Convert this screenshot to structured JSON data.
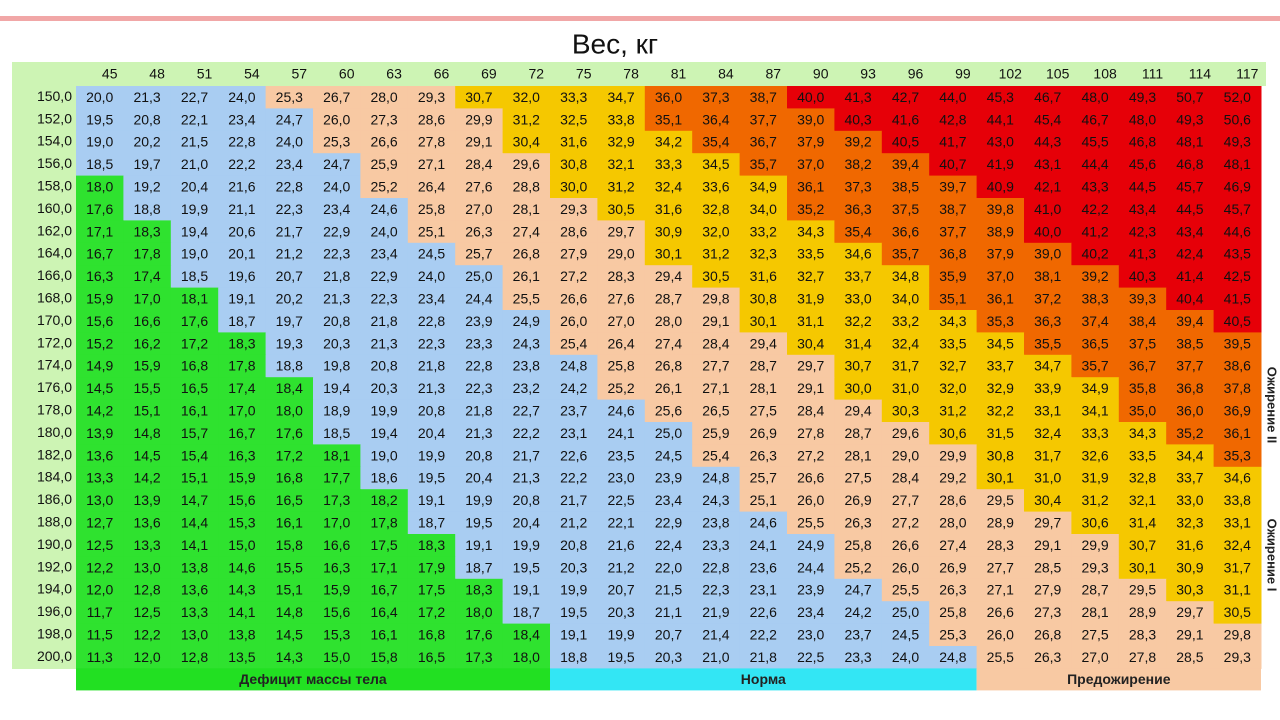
{
  "title": "Вес, кг",
  "weights": [
    45,
    48,
    51,
    54,
    57,
    60,
    63,
    66,
    69,
    72,
    75,
    78,
    81,
    84,
    87,
    90,
    93,
    96,
    99,
    102,
    105,
    108,
    111,
    114,
    117
  ],
  "zones": [
    {
      "color": "#2fe22f",
      "min": 0
    },
    {
      "color": "#a9cdf2",
      "min": 18.5
    },
    {
      "color": "#f8c9a3",
      "min": 25.1
    },
    {
      "color": "#f5c800",
      "min": 30
    },
    {
      "color": "#f06800",
      "min": 35
    },
    {
      "color": "#e60008",
      "min": 40
    }
  ],
  "rows": [
    {
      "height": "150,0",
      "values": [
        "20,0",
        "21,3",
        "22,7",
        "24,0",
        "25,3",
        "26,7",
        "28,0",
        "29,3",
        "30,7",
        "32,0",
        "33,3",
        "34,7",
        "36,0",
        "37,3",
        "38,7",
        "40,0",
        "41,3",
        "42,7",
        "44,0",
        "45,3",
        "46,7",
        "48,0",
        "49,3",
        "50,7",
        "52,0"
      ]
    },
    {
      "height": "152,0",
      "values": [
        "19,5",
        "20,8",
        "22,1",
        "23,4",
        "24,7",
        "26,0",
        "27,3",
        "28,6",
        "29,9",
        "31,2",
        "32,5",
        "33,8",
        "35,1",
        "36,4",
        "37,7",
        "39,0",
        "40,3",
        "41,6",
        "42,8",
        "44,1",
        "45,4",
        "46,7",
        "48,0",
        "49,3",
        "50,6"
      ]
    },
    {
      "height": "154,0",
      "values": [
        "19,0",
        "20,2",
        "21,5",
        "22,8",
        "24,0",
        "25,3",
        "26,6",
        "27,8",
        "29,1",
        "30,4",
        "31,6",
        "32,9",
        "34,2",
        "35,4",
        "36,7",
        "37,9",
        "39,2",
        "40,5",
        "41,7",
        "43,0",
        "44,3",
        "45,5",
        "46,8",
        "48,1",
        "49,3"
      ]
    },
    {
      "height": "156,0",
      "values": [
        "18,5",
        "19,7",
        "21,0",
        "22,2",
        "23,4",
        "24,7",
        "25,9",
        "27,1",
        "28,4",
        "29,6",
        "30,8",
        "32,1",
        "33,3",
        "34,5",
        "35,7",
        "37,0",
        "38,2",
        "39,4",
        "40,7",
        "41,9",
        "43,1",
        "44,4",
        "45,6",
        "46,8",
        "48,1"
      ]
    },
    {
      "height": "158,0",
      "values": [
        "18,0",
        "19,2",
        "20,4",
        "21,6",
        "22,8",
        "24,0",
        "25,2",
        "26,4",
        "27,6",
        "28,8",
        "30,0",
        "31,2",
        "32,4",
        "33,6",
        "34,9",
        "36,1",
        "37,3",
        "38,5",
        "39,7",
        "40,9",
        "42,1",
        "43,3",
        "44,5",
        "45,7",
        "46,9"
      ]
    },
    {
      "height": "160,0",
      "values": [
        "17,6",
        "18,8",
        "19,9",
        "21,1",
        "22,3",
        "23,4",
        "24,6",
        "25,8",
        "27,0",
        "28,1",
        "29,3",
        "30,5",
        "31,6",
        "32,8",
        "34,0",
        "35,2",
        "36,3",
        "37,5",
        "38,7",
        "39,8",
        "41,0",
        "42,2",
        "43,4",
        "44,5",
        "45,7"
      ]
    },
    {
      "height": "162,0",
      "values": [
        "17,1",
        "18,3",
        "19,4",
        "20,6",
        "21,7",
        "22,9",
        "24,0",
        "25,1",
        "26,3",
        "27,4",
        "28,6",
        "29,7",
        "30,9",
        "32,0",
        "33,2",
        "34,3",
        "35,4",
        "36,6",
        "37,7",
        "38,9",
        "40,0",
        "41,2",
        "42,3",
        "43,4",
        "44,6"
      ]
    },
    {
      "height": "164,0",
      "values": [
        "16,7",
        "17,8",
        "19,0",
        "20,1",
        "21,2",
        "22,3",
        "23,4",
        "24,5",
        "25,7",
        "26,8",
        "27,9",
        "29,0",
        "30,1",
        "31,2",
        "32,3",
        "33,5",
        "34,6",
        "35,7",
        "36,8",
        "37,9",
        "39,0",
        "40,2",
        "41,3",
        "42,4",
        "43,5"
      ]
    },
    {
      "height": "166,0",
      "values": [
        "16,3",
        "17,4",
        "18,5",
        "19,6",
        "20,7",
        "21,8",
        "22,9",
        "24,0",
        "25,0",
        "26,1",
        "27,2",
        "28,3",
        "29,4",
        "30,5",
        "31,6",
        "32,7",
        "33,7",
        "34,8",
        "35,9",
        "37,0",
        "38,1",
        "39,2",
        "40,3",
        "41,4",
        "42,5"
      ]
    },
    {
      "height": "168,0",
      "values": [
        "15,9",
        "17,0",
        "18,1",
        "19,1",
        "20,2",
        "21,3",
        "22,3",
        "23,4",
        "24,4",
        "25,5",
        "26,6",
        "27,6",
        "28,7",
        "29,8",
        "30,8",
        "31,9",
        "33,0",
        "34,0",
        "35,1",
        "36,1",
        "37,2",
        "38,3",
        "39,3",
        "40,4",
        "41,5"
      ]
    },
    {
      "height": "170,0",
      "values": [
        "15,6",
        "16,6",
        "17,6",
        "18,7",
        "19,7",
        "20,8",
        "21,8",
        "22,8",
        "23,9",
        "24,9",
        "26,0",
        "27,0",
        "28,0",
        "29,1",
        "30,1",
        "31,1",
        "32,2",
        "33,2",
        "34,3",
        "35,3",
        "36,3",
        "37,4",
        "38,4",
        "39,4",
        "40,5"
      ]
    },
    {
      "height": "172,0",
      "values": [
        "15,2",
        "16,2",
        "17,2",
        "18,3",
        "19,3",
        "20,3",
        "21,3",
        "22,3",
        "23,3",
        "24,3",
        "25,4",
        "26,4",
        "27,4",
        "28,4",
        "29,4",
        "30,4",
        "31,4",
        "32,4",
        "33,5",
        "34,5",
        "35,5",
        "36,5",
        "37,5",
        "38,5",
        "39,5"
      ]
    },
    {
      "height": "174,0",
      "values": [
        "14,9",
        "15,9",
        "16,8",
        "17,8",
        "18,8",
        "19,8",
        "20,8",
        "21,8",
        "22,8",
        "23,8",
        "24,8",
        "25,8",
        "26,8",
        "27,7",
        "28,7",
        "29,7",
        "30,7",
        "31,7",
        "32,7",
        "33,7",
        "34,7",
        "35,7",
        "36,7",
        "37,7",
        "38,6"
      ]
    },
    {
      "height": "176,0",
      "values": [
        "14,5",
        "15,5",
        "16,5",
        "17,4",
        "18,4",
        "19,4",
        "20,3",
        "21,3",
        "22,3",
        "23,2",
        "24,2",
        "25,2",
        "26,1",
        "27,1",
        "28,1",
        "29,1",
        "30,0",
        "31,0",
        "32,0",
        "32,9",
        "33,9",
        "34,9",
        "35,8",
        "36,8",
        "37,8"
      ]
    },
    {
      "height": "178,0",
      "values": [
        "14,2",
        "15,1",
        "16,1",
        "17,0",
        "18,0",
        "18,9",
        "19,9",
        "20,8",
        "21,8",
        "22,7",
        "23,7",
        "24,6",
        "25,6",
        "26,5",
        "27,5",
        "28,4",
        "29,4",
        "30,3",
        "31,2",
        "32,2",
        "33,1",
        "34,1",
        "35,0",
        "36,0",
        "36,9"
      ]
    },
    {
      "height": "180,0",
      "values": [
        "13,9",
        "14,8",
        "15,7",
        "16,7",
        "17,6",
        "18,5",
        "19,4",
        "20,4",
        "21,3",
        "22,2",
        "23,1",
        "24,1",
        "25,0",
        "25,9",
        "26,9",
        "27,8",
        "28,7",
        "29,6",
        "30,6",
        "31,5",
        "32,4",
        "33,3",
        "34,3",
        "35,2",
        "36,1"
      ]
    },
    {
      "height": "182,0",
      "values": [
        "13,6",
        "14,5",
        "15,4",
        "16,3",
        "17,2",
        "18,1",
        "19,0",
        "19,9",
        "20,8",
        "21,7",
        "22,6",
        "23,5",
        "24,5",
        "25,4",
        "26,3",
        "27,2",
        "28,1",
        "29,0",
        "29,9",
        "30,8",
        "31,7",
        "32,6",
        "33,5",
        "34,4",
        "35,3"
      ]
    },
    {
      "height": "184,0",
      "values": [
        "13,3",
        "14,2",
        "15,1",
        "15,9",
        "16,8",
        "17,7",
        "18,6",
        "19,5",
        "20,4",
        "21,3",
        "22,2",
        "23,0",
        "23,9",
        "24,8",
        "25,7",
        "26,6",
        "27,5",
        "28,4",
        "29,2",
        "30,1",
        "31,0",
        "31,9",
        "32,8",
        "33,7",
        "34,6"
      ]
    },
    {
      "height": "186,0",
      "values": [
        "13,0",
        "13,9",
        "14,7",
        "15,6",
        "16,5",
        "17,3",
        "18,2",
        "19,1",
        "19,9",
        "20,8",
        "21,7",
        "22,5",
        "23,4",
        "24,3",
        "25,1",
        "26,0",
        "26,9",
        "27,7",
        "28,6",
        "29,5",
        "30,4",
        "31,2",
        "32,1",
        "33,0",
        "33,8"
      ]
    },
    {
      "height": "188,0",
      "values": [
        "12,7",
        "13,6",
        "14,4",
        "15,3",
        "16,1",
        "17,0",
        "17,8",
        "18,7",
        "19,5",
        "20,4",
        "21,2",
        "22,1",
        "22,9",
        "23,8",
        "24,6",
        "25,5",
        "26,3",
        "27,2",
        "28,0",
        "28,9",
        "29,7",
        "30,6",
        "31,4",
        "32,3",
        "33,1"
      ]
    },
    {
      "height": "190,0",
      "values": [
        "12,5",
        "13,3",
        "14,1",
        "15,0",
        "15,8",
        "16,6",
        "17,5",
        "18,3",
        "19,1",
        "19,9",
        "20,8",
        "21,6",
        "22,4",
        "23,3",
        "24,1",
        "24,9",
        "25,8",
        "26,6",
        "27,4",
        "28,3",
        "29,1",
        "29,9",
        "30,7",
        "31,6",
        "32,4"
      ]
    },
    {
      "height": "192,0",
      "values": [
        "12,2",
        "13,0",
        "13,8",
        "14,6",
        "15,5",
        "16,3",
        "17,1",
        "17,9",
        "18,7",
        "19,5",
        "20,3",
        "21,2",
        "22,0",
        "22,8",
        "23,6",
        "24,4",
        "25,2",
        "26,0",
        "26,9",
        "27,7",
        "28,5",
        "29,3",
        "30,1",
        "30,9",
        "31,7"
      ]
    },
    {
      "height": "194,0",
      "values": [
        "12,0",
        "12,8",
        "13,6",
        "14,3",
        "15,1",
        "15,9",
        "16,7",
        "17,5",
        "18,3",
        "19,1",
        "19,9",
        "20,7",
        "21,5",
        "22,3",
        "23,1",
        "23,9",
        "24,7",
        "25,5",
        "26,3",
        "27,1",
        "27,9",
        "28,7",
        "29,5",
        "30,3",
        "31,1"
      ]
    },
    {
      "height": "196,0",
      "values": [
        "11,7",
        "12,5",
        "13,3",
        "14,1",
        "14,8",
        "15,6",
        "16,4",
        "17,2",
        "18,0",
        "18,7",
        "19,5",
        "20,3",
        "21,1",
        "21,9",
        "22,6",
        "23,4",
        "24,2",
        "25,0",
        "25,8",
        "26,6",
        "27,3",
        "28,1",
        "28,9",
        "29,7",
        "30,5"
      ]
    },
    {
      "height": "198,0",
      "values": [
        "11,5",
        "12,2",
        "13,0",
        "13,8",
        "14,5",
        "15,3",
        "16,1",
        "16,8",
        "17,6",
        "18,4",
        "19,1",
        "19,9",
        "20,7",
        "21,4",
        "22,2",
        "23,0",
        "23,7",
        "24,5",
        "25,3",
        "26,0",
        "26,8",
        "27,5",
        "28,3",
        "29,1",
        "29,8"
      ]
    },
    {
      "height": "200,0",
      "values": [
        "11,3",
        "12,0",
        "12,8",
        "13,5",
        "14,3",
        "15,0",
        "15,8",
        "16,5",
        "17,3",
        "18,0",
        "18,8",
        "19,5",
        "20,3",
        "21,0",
        "21,8",
        "22,5",
        "23,3",
        "24,0",
        "24,8",
        "25,5",
        "26,3",
        "27,0",
        "27,8",
        "28,5",
        "29,3"
      ]
    }
  ],
  "legend": [
    {
      "label": "Дефицит массы тела",
      "color": "#22e022"
    },
    {
      "label": "Норма",
      "color": "#33e6f4"
    },
    {
      "label": "Предожирение",
      "color": "#f8c9a3"
    }
  ],
  "side_labels": [
    "Ожирение II",
    "Ожирение I"
  ]
}
